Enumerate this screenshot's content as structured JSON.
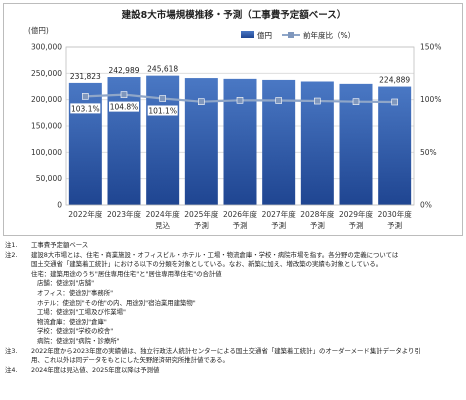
{
  "chart_data": {
    "type": "bar",
    "title": "建設8大市場規模推移・予測（工事費予定額ベース）",
    "y_unit_label": "(億円)",
    "ylim": [
      0,
      300000
    ],
    "yticks": [
      "0",
      "50,000",
      "100,000",
      "150,000",
      "200,000",
      "250,000",
      "300,000"
    ],
    "y2lim": [
      0,
      150
    ],
    "y2ticks": [
      "0%",
      "50%",
      "100%",
      "150%"
    ],
    "categories": [
      {
        "line1": "2022年度",
        "line2": ""
      },
      {
        "line1": "2023年度",
        "line2": ""
      },
      {
        "line1": "2024年度",
        "line2": "見込"
      },
      {
        "line1": "2025年度",
        "line2": "予測"
      },
      {
        "line1": "2026年度",
        "line2": "予測"
      },
      {
        "line1": "2027年度",
        "line2": "予測"
      },
      {
        "line1": "2028年度",
        "line2": "予測"
      },
      {
        "line1": "2029年度",
        "line2": "予測"
      },
      {
        "line1": "2030年度",
        "line2": "予測"
      }
    ],
    "legend": {
      "bar": "億円",
      "line": "前年度比（%）",
      "position": "top-right"
    },
    "series": [
      {
        "name": "億円",
        "type": "bar",
        "values": [
          231823,
          242989,
          245618,
          241000,
          239500,
          237500,
          234500,
          230000,
          224889
        ],
        "labels": [
          "231,823",
          "242,989",
          "245,618",
          "",
          "",
          "",
          "",
          "",
          "224,889"
        ]
      },
      {
        "name": "前年度比（%）",
        "type": "line",
        "values": [
          103.1,
          104.8,
          101.1,
          98.1,
          99.4,
          99.2,
          98.7,
          98.1,
          97.8
        ],
        "labels": [
          "103.1%",
          "104.8%",
          "101.1%",
          "",
          "",
          "",
          "",
          "",
          ""
        ]
      }
    ],
    "grid": true,
    "colors": {
      "bar_top": "#4a78c4",
      "bar_bottom": "#1f4591",
      "line": "#8fa6c8",
      "marker": "#7f97bd"
    }
  },
  "notes": {
    "n1": {
      "label": "注1.",
      "text": "工事費予定額ベース"
    },
    "n2": {
      "label": "注2.",
      "lines": [
        "建設8大市場とは、住宅・商業施設・オフィスビル・ホテル・工場・物流倉庫・学校・病院市場を指す。各分野の定義については",
        "国土交通省「建築着工統計」における以下の分類を対象としている。なお、新築に加え、増改築の実績も対象としている。"
      ],
      "items": [
        "住宅：建築用途のうち\"居住専用住宅\"と\"居住専用準住宅\"の合計値",
        "店舗：使途別\"店舗\"",
        "オフィス：使途別\"事務所\"",
        "ホテル：使途別\"その他\"の内、用途別\"宿泊業用建築物\"",
        "工場：使途別\"工場及び作業場\"",
        "物流倉庫：使途別\"倉庫\"",
        "学校：使途別\"学校の校舎\"",
        "病院：使途別\"病院・診療所\""
      ]
    },
    "n3": {
      "label": "注3.",
      "lines": [
        "2022年度から2023年度の実績値は、独立行政法人統計センターによる国土交通省「建築着工統計」のオーダーメード集計データより引",
        "用、これ以外は同データをもとにした矢野経済研究所推計値である。"
      ]
    },
    "n4": {
      "label": "注4.",
      "text": "2024年度は見込値、2025年度以降は予測値"
    }
  }
}
